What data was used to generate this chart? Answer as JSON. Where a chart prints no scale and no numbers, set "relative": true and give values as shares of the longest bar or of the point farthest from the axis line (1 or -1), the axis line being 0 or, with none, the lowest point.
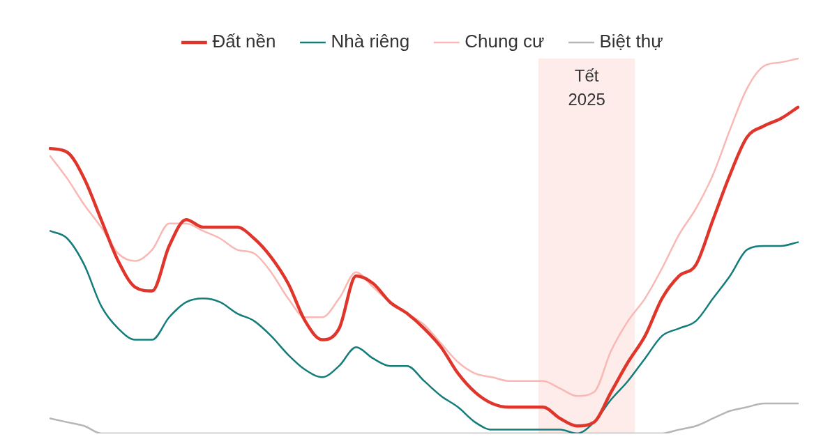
{
  "chart_data": {
    "type": "line",
    "relative": true,
    "legend": "top",
    "annotations": [
      "Tết 2025"
    ],
    "categories": [
      null,
      null,
      null,
      null,
      null,
      null,
      null,
      null,
      null,
      null,
      null,
      null,
      null,
      null,
      null,
      null,
      null,
      null,
      null,
      null,
      null,
      null,
      null,
      null,
      null,
      null,
      null,
      null,
      null,
      null,
      null,
      null,
      null,
      null,
      null,
      null,
      null,
      null,
      null,
      null,
      null,
      null,
      null,
      null,
      null
    ],
    "series": [
      {
        "name": "Đất nền",
        "color": "#e0352b",
        "values": [
          0.76,
          0.75,
          0.68,
          0.57,
          0.46,
          0.39,
          0.38,
          0.5,
          0.57,
          0.55,
          0.55,
          0.55,
          0.52,
          0.47,
          0.4,
          0.3,
          0.25,
          0.28,
          0.42,
          0.4,
          0.35,
          0.32,
          0.28,
          0.23,
          0.16,
          0.11,
          0.08,
          0.07,
          0.07,
          0.07,
          0.04,
          0.02,
          0.03,
          0.11,
          0.19,
          0.26,
          0.36,
          0.42,
          0.45,
          0.57,
          0.69,
          0.79,
          0.82,
          0.84,
          0.87
        ]
      },
      {
        "name": "Nhà riêng",
        "color": "#137d7b",
        "values": [
          0.54,
          0.52,
          0.45,
          0.34,
          0.28,
          0.25,
          0.25,
          0.31,
          0.35,
          0.36,
          0.35,
          0.32,
          0.3,
          0.26,
          0.21,
          0.17,
          0.15,
          0.18,
          0.23,
          0.2,
          0.18,
          0.18,
          0.14,
          0.1,
          0.07,
          0.03,
          0.01,
          0.01,
          0.01,
          0.01,
          0.01,
          0,
          0.03,
          0.09,
          0.14,
          0.2,
          0.26,
          0.28,
          0.3,
          0.36,
          0.42,
          0.49,
          0.5,
          0.5,
          0.51
        ]
      },
      {
        "name": "Chung cư",
        "color": "#f9b8b3",
        "values": [
          0.74,
          0.68,
          0.61,
          0.55,
          0.48,
          0.46,
          0.49,
          0.56,
          0.56,
          0.54,
          0.52,
          0.49,
          0.48,
          0.43,
          0.36,
          0.31,
          0.31,
          0.36,
          0.43,
          0.39,
          0.35,
          0.32,
          0.29,
          0.24,
          0.19,
          0.16,
          0.15,
          0.14,
          0.14,
          0.14,
          0.12,
          0.1,
          0.11,
          0.22,
          0.3,
          0.36,
          0.44,
          0.53,
          0.6,
          0.69,
          0.81,
          0.92,
          0.98,
          0.99,
          1
        ]
      },
      {
        "name": "Biệt thự",
        "color": "#b5b5b5",
        "values": [
          0.04,
          0.03,
          0.02,
          0,
          0,
          0,
          0,
          0,
          0,
          0,
          0,
          0,
          0,
          0,
          0,
          0,
          0,
          0,
          0,
          0,
          0,
          0,
          0,
          0,
          0,
          0,
          0,
          0,
          0,
          0,
          0,
          0,
          0,
          0,
          0,
          0,
          0,
          0.01,
          0.02,
          0.04,
          0.06,
          0.07,
          0.08,
          0.08,
          0.08
        ]
      }
    ]
  }
}
